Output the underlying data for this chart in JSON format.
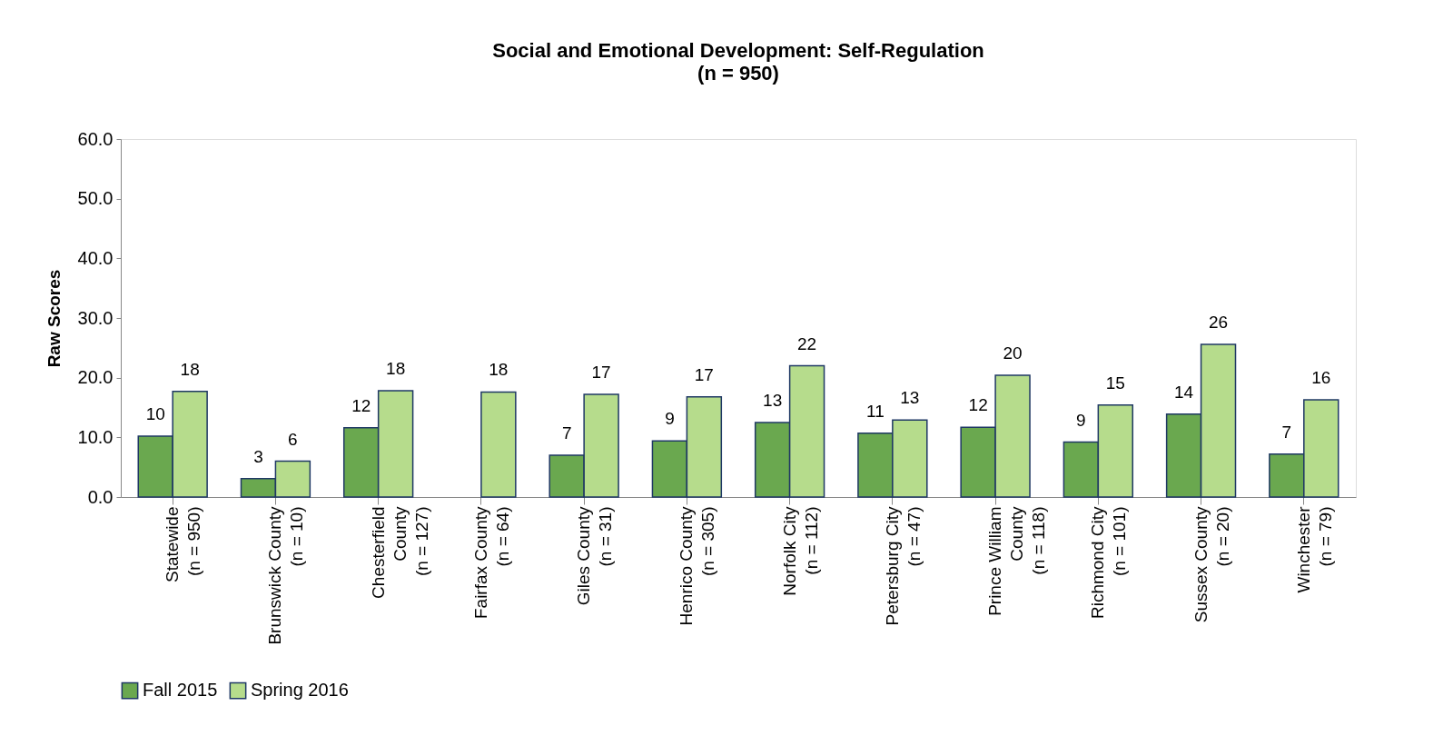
{
  "chart_data": {
    "type": "bar",
    "title": "Social and Emotional Development: Self-Regulation",
    "subtitle": "(n = 950)",
    "ylabel": "Raw Scores",
    "categories": [
      "Statewide\n(n = 950)",
      "Brunswick County\n(n = 10)",
      "Chesterfield\nCounty\n(n = 127)",
      "Fairfax County\n(n = 64)",
      "Giles County\n(n = 31)",
      "Henrico County\n(n = 305)",
      "Norfolk City\n(n = 112)",
      "Petersburg City\n(n = 47)",
      "Prince William\nCounty\n(n = 118)",
      "Richmond City\n(n = 101)",
      "Sussex County\n(n = 20)",
      "Winchester\n(n = 79)"
    ],
    "series": [
      {
        "name": "Fall 2015",
        "color": "#6aa84f",
        "values": [
          10.2,
          3.1,
          11.6,
          null,
          7.0,
          9.4,
          12.5,
          10.7,
          11.7,
          9.2,
          13.9,
          7.2
        ],
        "value_labels": [
          "10",
          "3",
          "12",
          null,
          "7",
          "9",
          "13",
          "11",
          "12",
          "9",
          "14",
          "7"
        ]
      },
      {
        "name": "Spring 2016",
        "color": "#b6dc8c",
        "values": [
          17.7,
          6.0,
          17.8,
          17.6,
          17.2,
          16.8,
          22.0,
          12.9,
          20.4,
          15.4,
          25.6,
          16.3
        ],
        "value_labels": [
          "18",
          "6",
          "18",
          "18",
          "17",
          "17",
          "22",
          "13",
          "20",
          "15",
          "26",
          "16"
        ]
      }
    ],
    "ylim": [
      0,
      60
    ],
    "yticks": [
      {
        "value": 0,
        "label": "0.0"
      },
      {
        "value": 10,
        "label": "10.0"
      },
      {
        "value": 20,
        "label": "20.0"
      },
      {
        "value": 30,
        "label": "30.0"
      },
      {
        "value": 40,
        "label": "40.0"
      },
      {
        "value": 50,
        "label": "50.0"
      },
      {
        "value": 60,
        "label": "60.0"
      }
    ],
    "grid": false,
    "legend": "bottom"
  }
}
